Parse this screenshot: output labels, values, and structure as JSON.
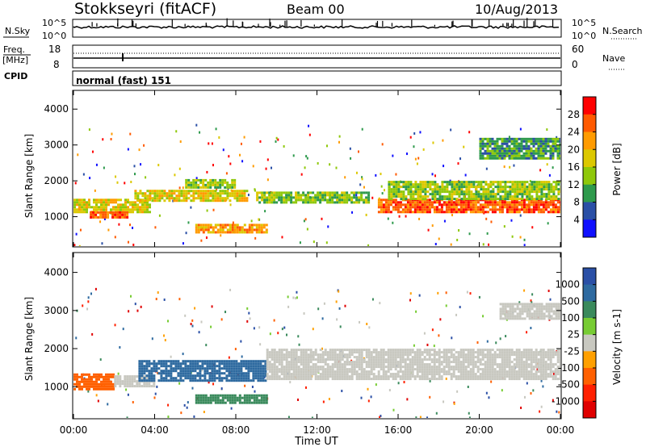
{
  "header": {
    "station": "Stokkseyri (fitACF)",
    "beam": "Beam 00",
    "date": "10/Aug/2013"
  },
  "noise_panel": {
    "left_label": "N.Sky",
    "right_label": "N.Search",
    "left_ticks": [
      "10^5",
      "10^0"
    ],
    "right_ticks": [
      "10^5",
      "10^0"
    ]
  },
  "freq_panel": {
    "left_label_1": "Freq.",
    "left_label_2": "[MHz]",
    "right_label": "Nave",
    "left_ticks": [
      "18",
      "8"
    ],
    "right_ticks": [
      "60",
      "0"
    ]
  },
  "cpid_panel": {
    "label": "CPID",
    "value": "normal (fast) 151"
  },
  "chart_data": [
    {
      "type": "heatmap",
      "quantity": "Power",
      "ylabel": "Slant Range [km]",
      "xlabel": "",
      "ylim": [
        180,
        4500
      ],
      "xlim_hours": [
        0,
        24
      ],
      "yticks": [
        1000,
        2000,
        3000,
        4000
      ],
      "colorbar_label": "Power [dB]",
      "colorbar_ticks": [
        "28",
        "24",
        "20",
        "16",
        "12",
        "8",
        "4"
      ],
      "colorbar_colors": [
        "#ff0000",
        "#ff5a00",
        "#ff9b00",
        "#dcc800",
        "#8fc80a",
        "#2e9a4c",
        "#2a4fa6",
        "#1010ff"
      ],
      "features": [
        {
          "t0": 0.0,
          "t1": 3.8,
          "r0": 1150,
          "r1": 1500,
          "level": 16
        },
        {
          "t0": 0.8,
          "t1": 2.6,
          "r0": 980,
          "r1": 1150,
          "level": 24
        },
        {
          "t0": 3.0,
          "t1": 8.5,
          "r0": 1450,
          "r1": 1750,
          "level": 16
        },
        {
          "t0": 5.5,
          "t1": 8.0,
          "r0": 1800,
          "r1": 2050,
          "level": 12
        },
        {
          "t0": 6.0,
          "t1": 9.5,
          "r0": 550,
          "r1": 800,
          "level": 20
        },
        {
          "t0": 9.0,
          "t1": 14.5,
          "r0": 1400,
          "r1": 1700,
          "level": 12
        },
        {
          "t0": 15.0,
          "t1": 24.0,
          "r0": 1150,
          "r1": 1500,
          "level": 24
        },
        {
          "t0": 15.5,
          "t1": 24.0,
          "r0": 1500,
          "r1": 2000,
          "level": 12
        },
        {
          "t0": 20.0,
          "t1": 24.0,
          "r0": 2600,
          "r1": 3200,
          "level": 8
        }
      ]
    },
    {
      "type": "heatmap",
      "quantity": "Velocity",
      "ylabel": "Slant Range [km]",
      "xlabel": "Time UT",
      "ylim": [
        180,
        4500
      ],
      "xlim_hours": [
        0,
        24
      ],
      "yticks": [
        1000,
        2000,
        3000,
        4000
      ],
      "xticks": [
        "00:00",
        "04:00",
        "08:00",
        "12:00",
        "16:00",
        "20:00",
        "00:00"
      ],
      "colorbar_label": "Velocity [m s-1]",
      "colorbar_ticks": [
        "1000",
        "500",
        "100",
        "25",
        "-25",
        "-100",
        "-500",
        "-1000"
      ],
      "colorbar_colors": [
        "#2a4fa6",
        "#2e6aa0",
        "#3a8a5c",
        "#77cc33",
        "#c8c8c0",
        "#ffa000",
        "#ff6000",
        "#ff2000",
        "#e00000"
      ],
      "features": [
        {
          "t0": 0.0,
          "t1": 2.0,
          "r0": 950,
          "r1": 1350,
          "level": -500
        },
        {
          "t0": 2.0,
          "t1": 4.0,
          "r0": 1000,
          "r1": 1300,
          "level": -25
        },
        {
          "t0": 3.2,
          "t1": 9.5,
          "r0": 1150,
          "r1": 1700,
          "level": 500
        },
        {
          "t0": 9.5,
          "t1": 24.0,
          "r0": 1200,
          "r1": 2000,
          "level": 0
        },
        {
          "t0": 6.0,
          "t1": 9.5,
          "r0": 550,
          "r1": 800,
          "level": 100
        },
        {
          "t0": 21.0,
          "t1": 24.0,
          "r0": 2800,
          "r1": 3200,
          "level": 0
        }
      ]
    }
  ]
}
